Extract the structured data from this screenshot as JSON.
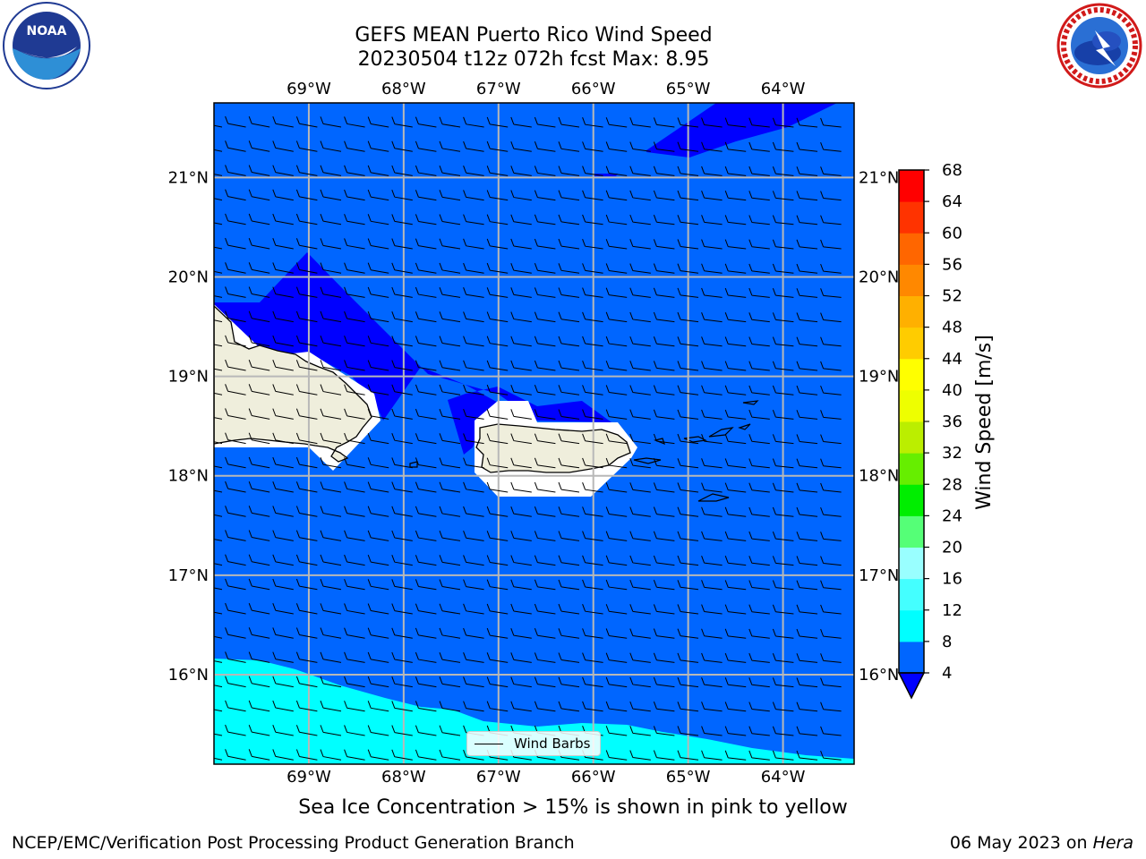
{
  "title": {
    "line1": "GEFS MEAN Puerto Rico Wind Speed",
    "line2": "20230504 t12z 072h fcst   Max: 8.95"
  },
  "map": {
    "lon_ticks": [
      "69°W",
      "68°W",
      "67°W",
      "66°W",
      "65°W",
      "64°W"
    ],
    "lat_ticks": [
      "21°N",
      "20°N",
      "19°N",
      "18°N",
      "17°N",
      "16°N"
    ],
    "lon_range": [
      -70,
      -63.25
    ],
    "lat_range": [
      15.1,
      21.75
    ],
    "grid": true,
    "legend_label": "Wind Barbs"
  },
  "colorbar": {
    "label": "Wind Speed [m/s]",
    "ticks": [
      "68",
      "64",
      "60",
      "56",
      "52",
      "48",
      "44",
      "40",
      "36",
      "32",
      "28",
      "24",
      "20",
      "16",
      "12",
      "8",
      "4"
    ],
    "colors": [
      "#0000ff",
      "#0066ff",
      "#00ffff",
      "#33ffff",
      "#66ffff",
      "#99ffff",
      "#55ff77",
      "#22ee22",
      "#00cc00",
      "#66ee00",
      "#aaee00",
      "#ccff00",
      "#eeff00",
      "#ffff00",
      "#ffdd00",
      "#ffbb00",
      "#ff9900",
      "#ff7700",
      "#ff5500",
      "#ff3300",
      "#ff0000"
    ]
  },
  "note": "Sea Ice Concentration > 15% is shown in pink to yellow",
  "footer": {
    "left": "NCEP/EMC/Verification Post Processing Product Generation Branch",
    "date": "06 May 2023 on ",
    "machine": "Hera"
  },
  "logos": {
    "left": "noaa-logo",
    "right": "nws-logo"
  }
}
